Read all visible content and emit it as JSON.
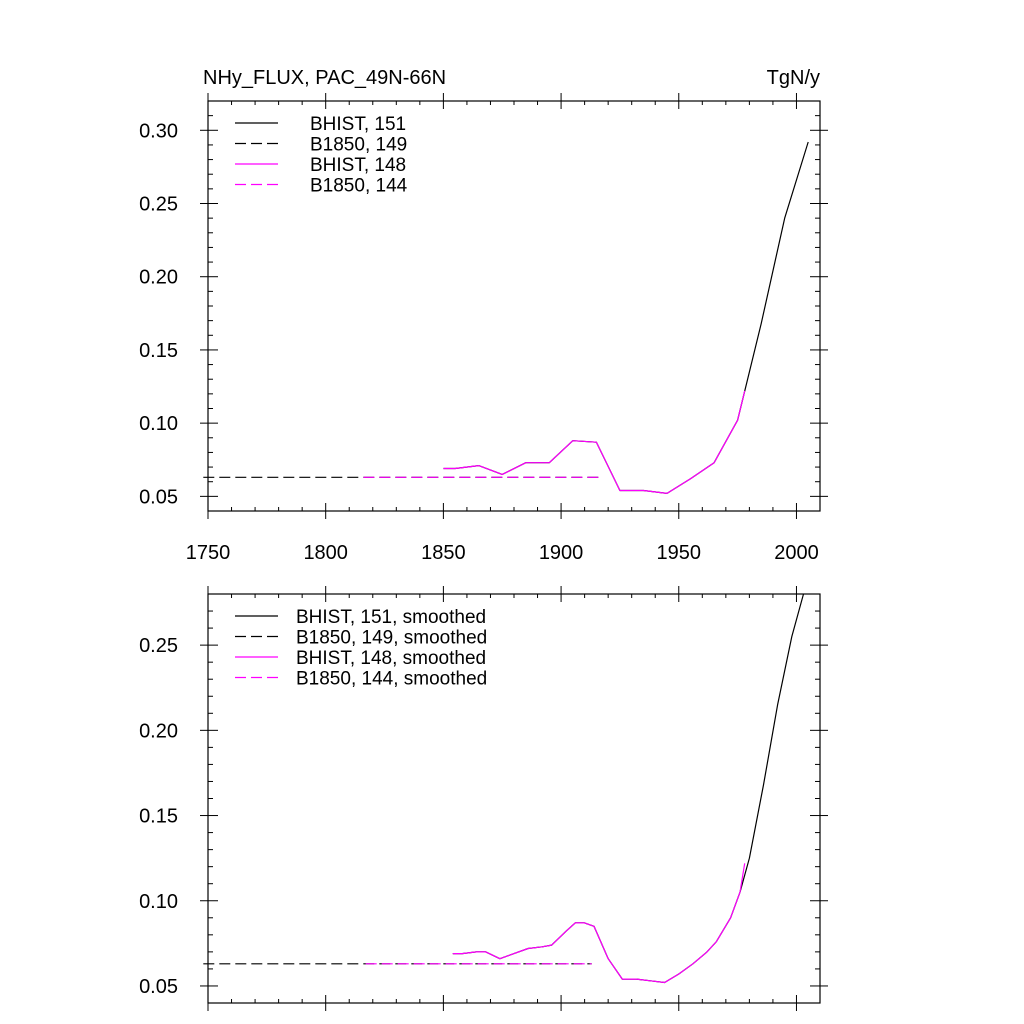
{
  "chart_data": [
    {
      "type": "line",
      "title_left": "NHy_FLUX, PAC_49N-66N",
      "title_right": "TgN/y",
      "xlabel": "",
      "ylabel": "",
      "xlim": [
        1750,
        2010
      ],
      "ylim": [
        0.04,
        0.32
      ],
      "xticks": [
        1750,
        1800,
        1850,
        1900,
        1950,
        2000
      ],
      "yticks": [
        0.05,
        0.1,
        0.15,
        0.2,
        0.25,
        0.3
      ],
      "ytick_labels": [
        "0.05",
        "0.10",
        "0.15",
        "0.20",
        "0.25",
        "0.30"
      ],
      "show_xtick_labels": true,
      "legend_position": "top-left",
      "series": [
        {
          "name": "BHIST, 151",
          "color": "#000000",
          "dash": "solid",
          "x": [
            1850,
            1855,
            1865,
            1875,
            1885,
            1895,
            1905,
            1915,
            1925,
            1935,
            1945,
            1955,
            1965,
            1975,
            1985,
            1995,
            2005
          ],
          "y": [
            0.069,
            0.069,
            0.071,
            0.065,
            0.073,
            0.073,
            0.088,
            0.087,
            0.054,
            0.054,
            0.052,
            0.062,
            0.073,
            0.102,
            0.168,
            0.24,
            0.292
          ]
        },
        {
          "name": "B1850, 149",
          "color": "#000000",
          "dash": "dashed",
          "x": [
            1748,
            1916
          ],
          "y": [
            0.063,
            0.063
          ]
        },
        {
          "name": "BHIST, 148",
          "color": "#ff00ff",
          "dash": "solid",
          "x": [
            1850,
            1855,
            1865,
            1875,
            1885,
            1895,
            1905,
            1915,
            1925,
            1935,
            1945,
            1955,
            1965,
            1975,
            1978
          ],
          "y": [
            0.069,
            0.069,
            0.071,
            0.065,
            0.073,
            0.073,
            0.088,
            0.087,
            0.054,
            0.054,
            0.052,
            0.062,
            0.073,
            0.102,
            0.122
          ]
        },
        {
          "name": "B1850, 144",
          "color": "#ff00ff",
          "dash": "dashed",
          "x": [
            1816,
            1916
          ],
          "y": [
            0.063,
            0.063
          ]
        }
      ]
    },
    {
      "type": "line",
      "title_left": "",
      "title_right": "",
      "xlabel": "",
      "ylabel": "",
      "xlim": [
        1750,
        2010
      ],
      "ylim": [
        0.04,
        0.28
      ],
      "xticks": [
        1750,
        1800,
        1850,
        1900,
        1950,
        2000
      ],
      "yticks": [
        0.05,
        0.1,
        0.15,
        0.2,
        0.25
      ],
      "ytick_labels": [
        "0.05",
        "0.10",
        "0.15",
        "0.20",
        "0.25"
      ],
      "show_xtick_labels": false,
      "legend_position": "top-left",
      "series": [
        {
          "name": "BHIST, 151, smoothed",
          "color": "#000000",
          "dash": "solid",
          "x": [
            1854,
            1858,
            1864,
            1868,
            1874,
            1880,
            1886,
            1892,
            1896,
            1902,
            1906,
            1910,
            1914,
            1920,
            1926,
            1932,
            1938,
            1944,
            1950,
            1956,
            1962,
            1966,
            1972,
            1976,
            1980,
            1986,
            1992,
            1998,
            2003
          ],
          "y": [
            0.069,
            0.069,
            0.07,
            0.07,
            0.066,
            0.069,
            0.072,
            0.073,
            0.074,
            0.082,
            0.087,
            0.087,
            0.085,
            0.066,
            0.054,
            0.054,
            0.053,
            0.052,
            0.057,
            0.063,
            0.07,
            0.076,
            0.09,
            0.105,
            0.125,
            0.168,
            0.215,
            0.255,
            0.28
          ]
        },
        {
          "name": "B1850, 149, smoothed",
          "color": "#000000",
          "dash": "dashed",
          "x": [
            1748,
            1913
          ],
          "y": [
            0.063,
            0.063
          ]
        },
        {
          "name": "BHIST, 148, smoothed",
          "color": "#ff00ff",
          "dash": "solid",
          "x": [
            1854,
            1858,
            1864,
            1868,
            1874,
            1880,
            1886,
            1892,
            1896,
            1902,
            1906,
            1910,
            1914,
            1920,
            1926,
            1932,
            1938,
            1944,
            1950,
            1956,
            1962,
            1966,
            1972,
            1976,
            1978
          ],
          "y": [
            0.069,
            0.069,
            0.07,
            0.07,
            0.066,
            0.069,
            0.072,
            0.073,
            0.074,
            0.082,
            0.087,
            0.087,
            0.085,
            0.066,
            0.054,
            0.054,
            0.053,
            0.052,
            0.057,
            0.063,
            0.07,
            0.076,
            0.09,
            0.105,
            0.122
          ]
        },
        {
          "name": "B1850, 144, smoothed",
          "color": "#ff00ff",
          "dash": "dashed",
          "x": [
            1817,
            1913
          ],
          "y": [
            0.063,
            0.063
          ]
        }
      ]
    }
  ]
}
